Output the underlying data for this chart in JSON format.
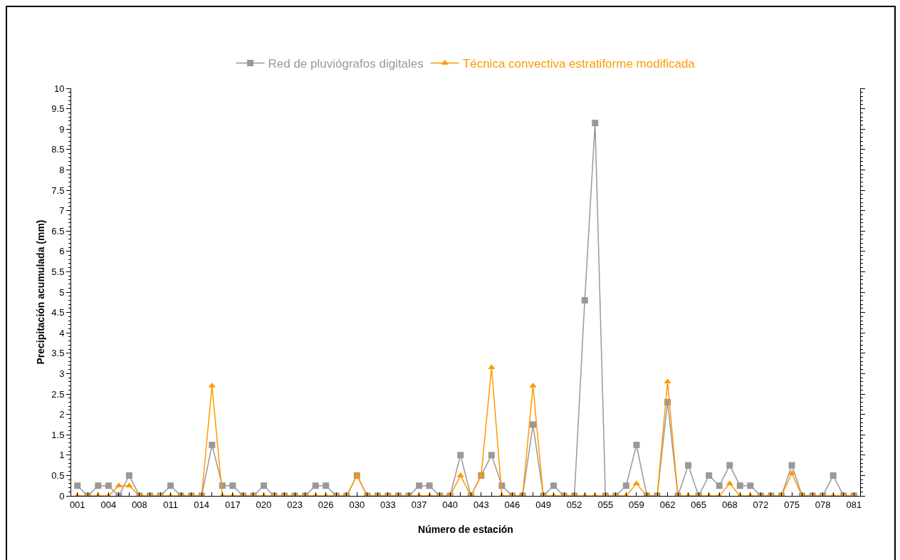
{
  "chart_data": {
    "type": "line",
    "xlabel": "Número de estación",
    "ylabel": "Precipitación acumulada (mm)",
    "categories": [
      "001",
      null,
      null,
      "004",
      null,
      null,
      "008",
      null,
      null,
      "011",
      null,
      null,
      "014",
      null,
      null,
      "017",
      null,
      null,
      "020",
      null,
      null,
      "023",
      null,
      null,
      "026",
      null,
      null,
      "030",
      null,
      null,
      "033",
      null,
      null,
      "037",
      null,
      null,
      "040",
      null,
      null,
      "043",
      null,
      null,
      "046",
      null,
      null,
      "049",
      null,
      null,
      "052",
      null,
      null,
      "055",
      null,
      null,
      "059",
      null,
      null,
      "062",
      null,
      null,
      "065",
      null,
      null,
      "068",
      null,
      null,
      "072",
      null,
      null,
      "075",
      null,
      null,
      "078",
      null,
      null,
      "081"
    ],
    "series": [
      {
        "name": "Red de pluviógrafos digitales",
        "color": "#999999",
        "marker": "square",
        "values": [
          0.25,
          0,
          0.25,
          0.25,
          0,
          0.5,
          0,
          0,
          0,
          0.25,
          0,
          0,
          0,
          1.25,
          0.25,
          0.25,
          0,
          0,
          0.25,
          0,
          0,
          0,
          0,
          0.25,
          0.25,
          0,
          0,
          0.5,
          0,
          0,
          0,
          0,
          0,
          0.25,
          0.25,
          0,
          0,
          1,
          0,
          0.5,
          1,
          0.25,
          0,
          0,
          1.75,
          0,
          0.25,
          0,
          0,
          4.8,
          9.15,
          0,
          0,
          0.25,
          1.25,
          0,
          0,
          2.3,
          0,
          0.75,
          0,
          0.5,
          0.25,
          0.75,
          0.25,
          0.25,
          0,
          0,
          0,
          0.75,
          0,
          0,
          0,
          0.5,
          0,
          0
        ]
      },
      {
        "name": "Técnica convectiva estratiforme modificada",
        "color": "#ff9900",
        "marker": "triangle",
        "values": [
          0,
          0,
          0,
          0,
          0.25,
          0.25,
          0,
          0,
          0,
          0,
          0,
          0,
          0,
          2.7,
          0,
          0,
          0,
          0,
          0,
          0,
          0,
          0,
          0,
          0,
          0,
          0,
          0,
          0.5,
          0,
          0,
          0,
          0,
          0,
          0,
          0,
          0,
          0,
          0.5,
          0,
          0.5,
          3.15,
          0,
          0,
          0,
          2.7,
          0,
          0,
          0,
          0,
          0,
          0,
          0,
          0,
          0,
          0.3,
          0,
          0,
          2.8,
          0,
          0,
          0,
          0,
          0,
          0.3,
          0,
          0,
          0,
          0,
          0,
          0.55,
          0,
          0,
          0,
          0,
          0,
          0
        ]
      }
    ],
    "ylim": [
      0,
      10
    ],
    "yticks": [
      0,
      0.5,
      1,
      1.5,
      2,
      2.5,
      3,
      3.5,
      4,
      4.5,
      5,
      5.5,
      6,
      6.5,
      7,
      7.5,
      8,
      8.5,
      9,
      9.5,
      10
    ],
    "grid": false,
    "legend": "top",
    "line_style": "solid"
  }
}
